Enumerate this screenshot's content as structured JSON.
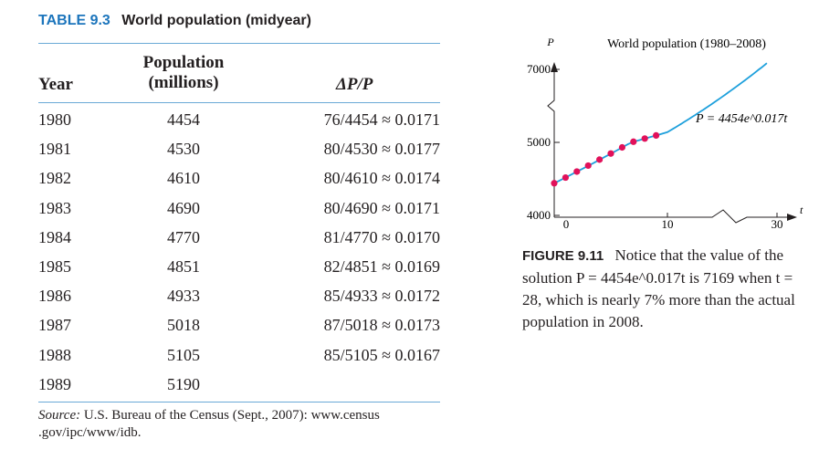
{
  "table": {
    "label": "TABLE 9.3",
    "title": "World population (midyear)",
    "headers": {
      "year": "Year",
      "population_line1": "Population",
      "population_line2": "(millions)",
      "ratio": "ΔP/P"
    },
    "rows": [
      {
        "year": "1980",
        "population": "4454",
        "ratio": "76/4454 ≈ 0.0171"
      },
      {
        "year": "1981",
        "population": "4530",
        "ratio": "80/4530 ≈ 0.0177"
      },
      {
        "year": "1982",
        "population": "4610",
        "ratio": "80/4610 ≈ 0.0174"
      },
      {
        "year": "1983",
        "population": "4690",
        "ratio": "80/4690 ≈ 0.0171"
      },
      {
        "year": "1984",
        "population": "4770",
        "ratio": "81/4770 ≈ 0.0170"
      },
      {
        "year": "1985",
        "population": "4851",
        "ratio": "82/4851 ≈ 0.0169"
      },
      {
        "year": "1986",
        "population": "4933",
        "ratio": "85/4933 ≈ 0.0172"
      },
      {
        "year": "1987",
        "population": "5018",
        "ratio": "87/5018 ≈ 0.0173"
      },
      {
        "year": "1988",
        "population": "5105",
        "ratio": "85/5105 ≈ 0.0167"
      },
      {
        "year": "1989",
        "population": "5190",
        "ratio": ""
      }
    ],
    "source_label": "Source:",
    "source_text": "U.S. Bureau of the Census (Sept., 2007): www.census .gov/ipc/www/idb."
  },
  "figure": {
    "label": "FIGURE 9.11",
    "caption": "Notice that the value of the solution P = 4454e^0.017t is 7169 when t = 28, which is nearly 7% more than the actual population in 2008."
  },
  "chart_data": {
    "type": "scatter",
    "title": "World population (1980–2008)",
    "xlabel": "t",
    "ylabel": "P",
    "xlim": [
      0,
      30
    ],
    "ylim": [
      4000,
      7000
    ],
    "x_ticks": [
      "0",
      "10",
      "30"
    ],
    "y_ticks": [
      "4000",
      "5000",
      "7000"
    ],
    "grid": false,
    "axis_breaks": [
      "x",
      "y"
    ],
    "curve_label": "P = 4454e^0.017t",
    "curve_color": "#1ea0dc",
    "point_color": "#e1115a",
    "series": [
      {
        "type": "points",
        "x": [
          0,
          1,
          2,
          3,
          4,
          5,
          6,
          7,
          8,
          9
        ],
        "values": [
          4454,
          4530,
          4610,
          4690,
          4770,
          4851,
          4933,
          5018,
          5105,
          5190
        ]
      },
      {
        "type": "curve",
        "equation": "P = 4454e^0.017t",
        "x": [
          0,
          28
        ],
        "values": [
          4454,
          7169
        ]
      }
    ]
  }
}
